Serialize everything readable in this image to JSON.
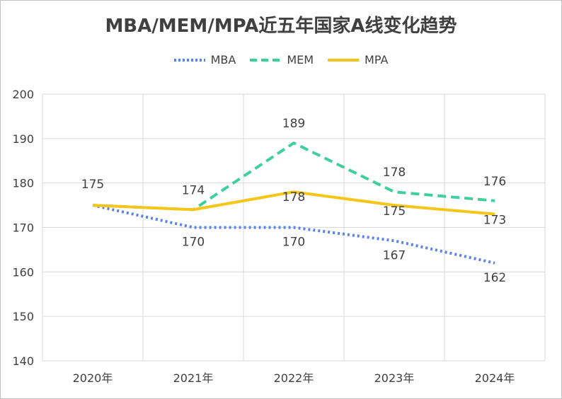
{
  "chart_data": {
    "type": "line",
    "title": "MBA/MEM/MPA近五年国家A线变化趋势",
    "categories": [
      "2020年",
      "2021年",
      "2022年",
      "2023年",
      "2024年"
    ],
    "ylim": [
      140,
      200
    ],
    "yticks": [
      140,
      150,
      160,
      170,
      180,
      190,
      200
    ],
    "grid": true,
    "legend_position": "top",
    "series": [
      {
        "name": "MBA",
        "values": [
          175,
          170,
          170,
          167,
          162
        ],
        "color": "#5b82e8",
        "style": "dotted"
      },
      {
        "name": "MEM",
        "values": [
          175,
          174,
          189,
          178,
          176
        ],
        "color": "#3fcf9a",
        "style": "dashed"
      },
      {
        "name": "MPA",
        "values": [
          175,
          174,
          178,
          175,
          173
        ],
        "color": "#f5c518",
        "style": "solid"
      }
    ],
    "data_labels": [
      {
        "series": "MBA",
        "index": 1,
        "text": "170"
      },
      {
        "series": "MBA",
        "index": 2,
        "text": "170"
      },
      {
        "series": "MBA",
        "index": 3,
        "text": "167"
      },
      {
        "series": "MBA",
        "index": 4,
        "text": "162"
      },
      {
        "series": "MEM",
        "index": 0,
        "text": "175"
      },
      {
        "series": "MEM",
        "index": 1,
        "text": "174"
      },
      {
        "series": "MEM",
        "index": 2,
        "text": "189"
      },
      {
        "series": "MEM",
        "index": 3,
        "text": "178"
      },
      {
        "series": "MEM",
        "index": 4,
        "text": "176"
      },
      {
        "series": "MPA",
        "index": 2,
        "text": "178"
      },
      {
        "series": "MPA",
        "index": 3,
        "text": "175"
      },
      {
        "series": "MPA",
        "index": 4,
        "text": "173"
      }
    ]
  }
}
